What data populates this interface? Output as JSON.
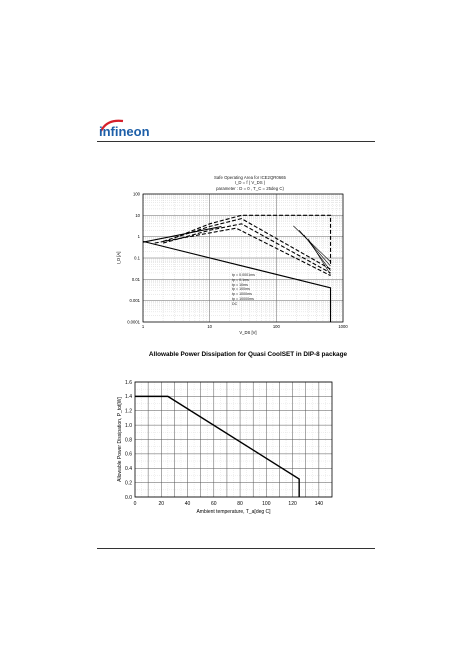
{
  "header": {
    "logo_text": "infineon",
    "logo_color": "#1d5fa8",
    "logo_arc_color": "#d6202b"
  },
  "soa_chart": {
    "title_lines": [
      "Safe Operating Area for ICE2QR0665",
      "I_D = f ( V_DS )",
      "parameter : D = 0 , T_C = 25deg C)"
    ],
    "legend": [
      "tp = 0.0001ms",
      "tp = 0.1ms",
      "tp = 10ms",
      "tp = 100ms",
      "tp = 1000ms",
      "tp = 10000ms",
      "DC"
    ]
  },
  "chart_data": [
    {
      "type": "line",
      "ylabel": "I_D [A]",
      "xlabel": "V_DS [V]",
      "xscale": "log",
      "yscale": "log",
      "xlim": [
        1,
        1000
      ],
      "ylim": [
        0.0001,
        100
      ],
      "x_ticks": [
        "1",
        "10",
        "100",
        "1000"
      ],
      "y_ticks": [
        "100",
        "10",
        "1",
        "0.1",
        "0.01",
        "0.001",
        "0.0001"
      ],
      "series": [
        {
          "name": "tp = 0.0001ms",
          "style": "dashed",
          "x": [
            3,
            10,
            30,
            650,
            650
          ],
          "y": [
            0.9,
            4,
            10,
            10,
            0.05
          ]
        },
        {
          "name": "tp = 0.1ms",
          "style": "dashed",
          "x": [
            2,
            10,
            30,
            650
          ],
          "y": [
            0.6,
            3,
            7,
            0.03
          ]
        },
        {
          "name": "tp = 10ms",
          "style": "dashed",
          "x": [
            2,
            10,
            30,
            650
          ],
          "y": [
            0.5,
            2,
            4,
            0.02
          ]
        },
        {
          "name": "tp = 100ms",
          "style": "dashed",
          "x": [
            1.5,
            10,
            25,
            650
          ],
          "y": [
            0.5,
            1.5,
            2.5,
            0.015
          ]
        },
        {
          "name": "DC",
          "style": "solid",
          "x": [
            1,
            650,
            650
          ],
          "y": [
            0.6,
            0.004,
            0.0001
          ]
        },
        {
          "name": "tp = 1000ms",
          "style": "solid",
          "x": [
            1,
            15
          ],
          "y": [
            0.55,
            3
          ]
        }
      ],
      "grid": true
    },
    {
      "type": "line",
      "title": "Allowable Power Dissipation for Quasi CoolSET in DIP-8 package",
      "xlabel": "Ambient temperature,  T_a[deg C]",
      "ylabel": "Allowable Power Dissipation,  P_tot[W]",
      "xlim": [
        0,
        150
      ],
      "ylim": [
        0,
        1.6
      ],
      "x_ticks": [
        0,
        20,
        40,
        60,
        80,
        100,
        120,
        140
      ],
      "y_ticks": [
        0,
        0.2,
        0.4,
        0.6,
        0.8,
        1.0,
        1.2,
        1.4,
        1.6
      ],
      "x": [
        0,
        25,
        125,
        125
      ],
      "y": [
        1.4,
        1.4,
        0.25,
        0
      ],
      "grid": true
    }
  ]
}
